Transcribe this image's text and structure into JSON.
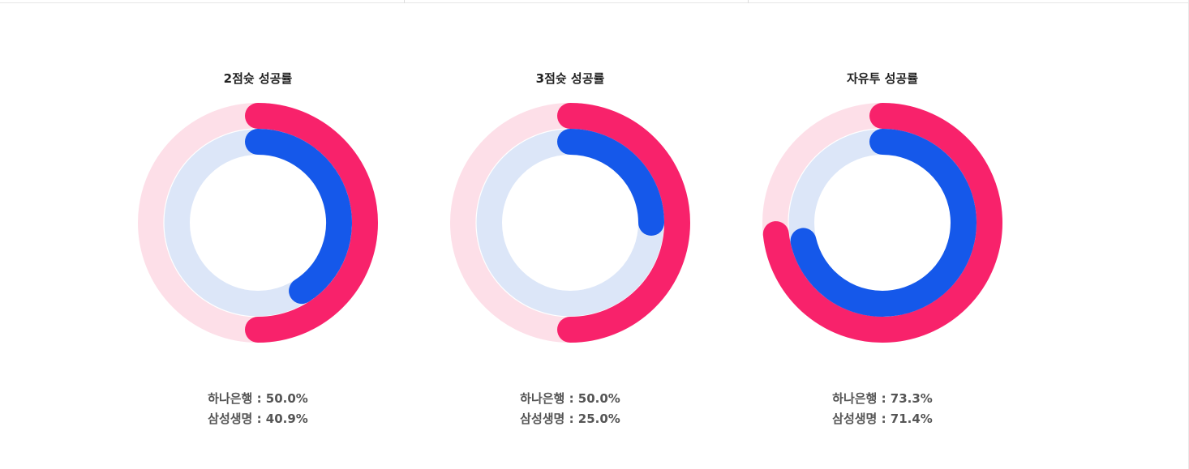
{
  "colors": {
    "series_1": "#f8226b",
    "series_1_track": "#fddfe8",
    "series_2": "#1558ea",
    "series_2_track": "#dce6f8"
  },
  "chart_data": [
    {
      "type": "donut",
      "title": "2점슛 성공률",
      "series": [
        {
          "name": "하나은행",
          "value": 50.0,
          "label": "50.0%"
        },
        {
          "name": "삼성생명",
          "value": 40.9,
          "label": "40.9%"
        }
      ]
    },
    {
      "type": "donut",
      "title": "3점슛 성공률",
      "series": [
        {
          "name": "하나은행",
          "value": 50.0,
          "label": "50.0%"
        },
        {
          "name": "삼성생명",
          "value": 25.0,
          "label": "25.0%"
        }
      ]
    },
    {
      "type": "donut",
      "title": "자유투 성공률",
      "series": [
        {
          "name": "하나은행",
          "value": 73.3,
          "label": "73.3%"
        },
        {
          "name": "삼성생명",
          "value": 71.4,
          "label": "71.4%"
        }
      ]
    }
  ]
}
